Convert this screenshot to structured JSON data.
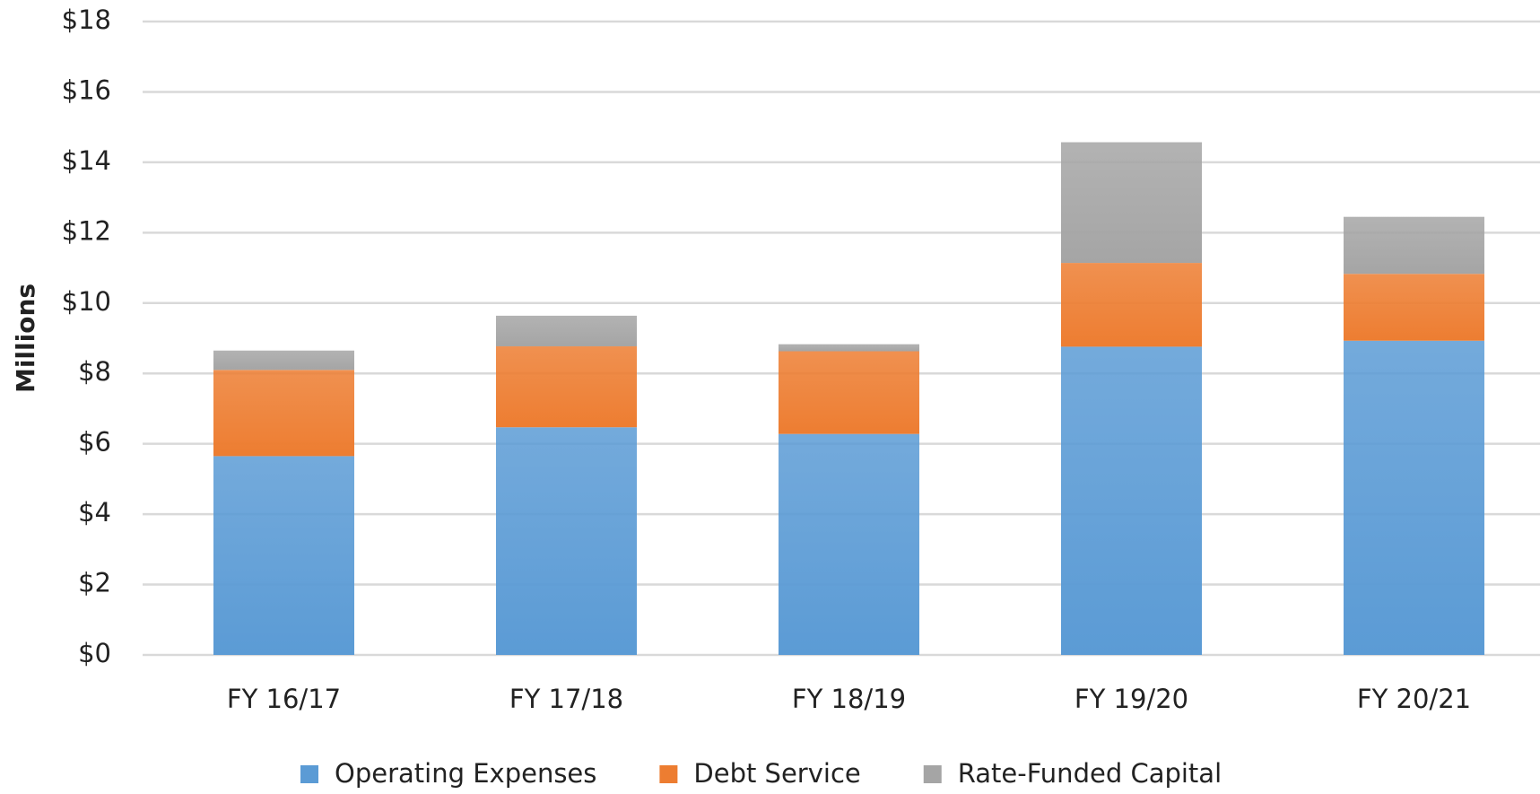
{
  "chart_data": {
    "type": "stacked_bar",
    "y_label": "Millions",
    "categories": [
      "FY 16/17",
      "FY 17/18",
      "FY 18/19",
      "FY 19/20",
      "FY 20/21"
    ],
    "series": [
      {
        "name": "Operating Expenses",
        "color": "#5b9bd5",
        "values": [
          5.65,
          6.47,
          6.28,
          8.76,
          8.93
        ]
      },
      {
        "name": "Debt Service",
        "color": "#ed7d31",
        "values": [
          2.45,
          2.3,
          2.35,
          2.38,
          1.9
        ]
      },
      {
        "name": "Rate-Funded Capital",
        "color": "#a5a5a5",
        "values": [
          0.55,
          0.87,
          0.2,
          3.43,
          1.62
        ]
      }
    ],
    "ylim": [
      0,
      18
    ],
    "yticks": [
      {
        "value": 0,
        "label": "$0"
      },
      {
        "value": 2,
        "label": "$2"
      },
      {
        "value": 4,
        "label": "$4"
      },
      {
        "value": 6,
        "label": "$6"
      },
      {
        "value": 8,
        "label": "$8"
      },
      {
        "value": 10,
        "label": "$10"
      },
      {
        "value": 12,
        "label": "$12"
      },
      {
        "value": 14,
        "label": "$14"
      },
      {
        "value": 16,
        "label": "$16"
      },
      {
        "value": 18,
        "label": "$18"
      }
    ],
    "grid": true,
    "legend": "bottom"
  }
}
